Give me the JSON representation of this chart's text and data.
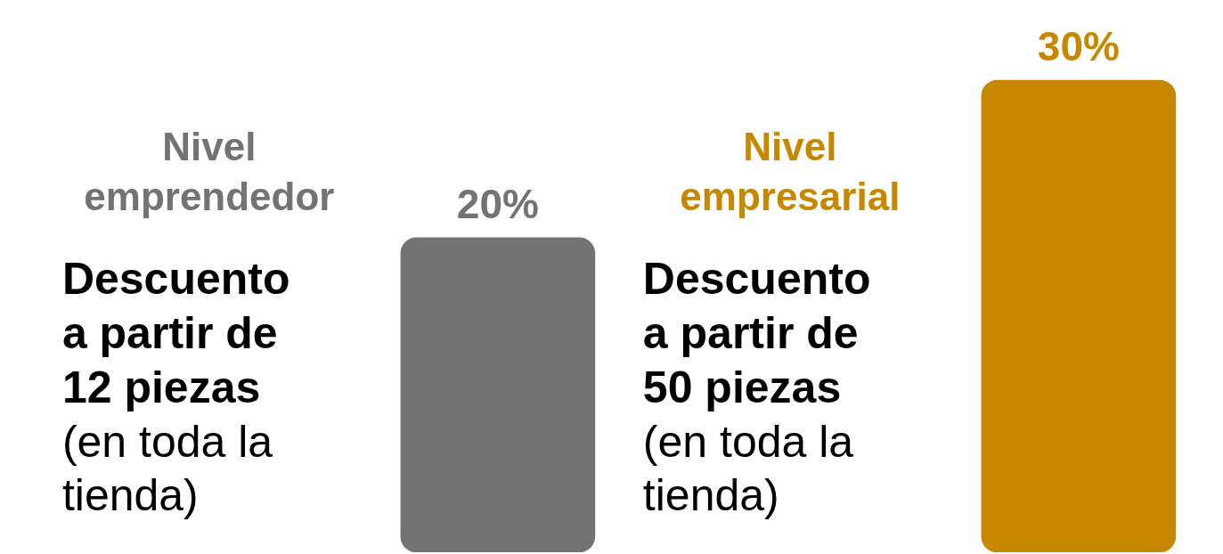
{
  "chart_data": {
    "type": "bar",
    "categories": [
      "Nivel emprendedor",
      "Nivel empresarial"
    ],
    "values": [
      20,
      30
    ],
    "colors": [
      "#737373",
      "#c78800"
    ],
    "value_labels": [
      "20%",
      "30%"
    ],
    "annotations": [
      "Descuento a partir de 12 piezas",
      "(en toda la tienda)",
      "Descuento a partir de 50 piezas",
      "(en toda la tienda)"
    ]
  }
}
